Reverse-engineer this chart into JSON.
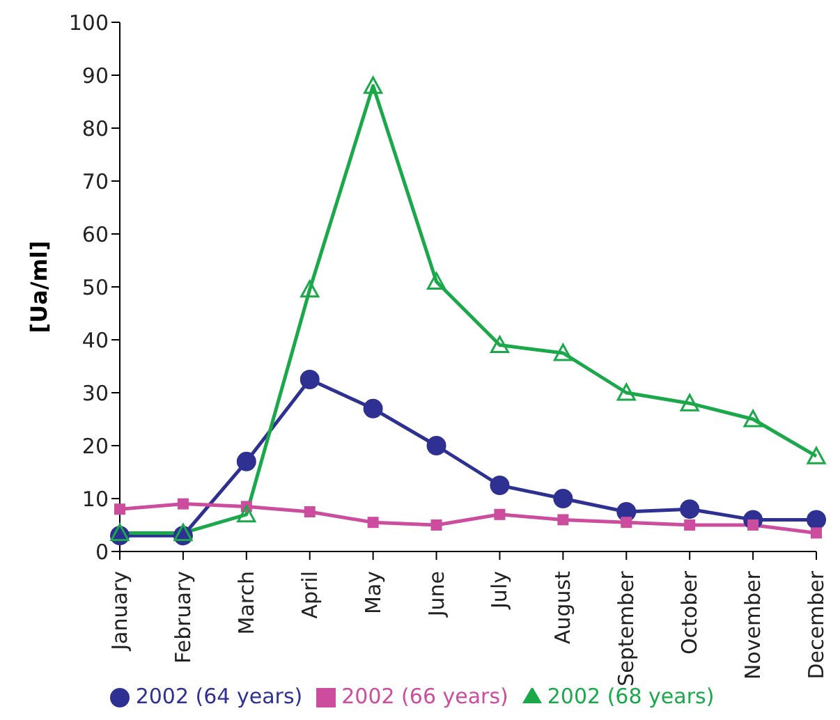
{
  "chart_data": {
    "type": "line",
    "ylabel": "[Ua/ml]",
    "categories": [
      "January",
      "February",
      "March",
      "April",
      "May",
      "June",
      "July",
      "August",
      "September",
      "October",
      "November",
      "December"
    ],
    "ylim": [
      0,
      100
    ],
    "yticks": [
      0,
      10,
      20,
      30,
      40,
      50,
      60,
      70,
      80,
      90,
      100
    ],
    "grid": false,
    "legend": "bottom",
    "line_style": "solid",
    "series": [
      {
        "name": "2002 (64 years)",
        "color": "#2e3192",
        "marker": "circle",
        "values": [
          3,
          3,
          17,
          32.5,
          27,
          20,
          12.5,
          10,
          7.5,
          8,
          6,
          6
        ]
      },
      {
        "name": "2002 (66 years)",
        "color": "#cc4c9e",
        "marker": "square",
        "values": [
          8,
          9,
          8.5,
          7.5,
          5.5,
          5,
          7,
          6,
          5.5,
          5,
          5,
          3.5
        ]
      },
      {
        "name": "2002 (68 years)",
        "color": "#1aa84a",
        "marker": "triangle",
        "values": [
          3.5,
          3.5,
          7,
          49.5,
          88,
          51,
          39,
          37.5,
          30,
          28,
          25,
          18
        ]
      }
    ]
  }
}
